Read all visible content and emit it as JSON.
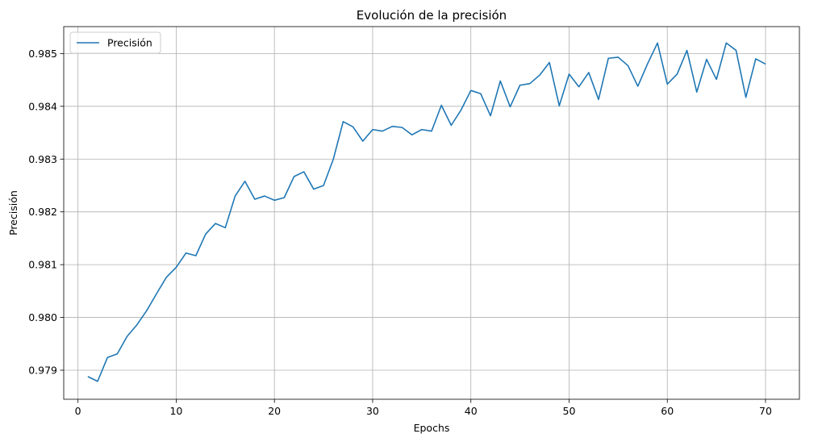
{
  "chart_data": {
    "type": "line",
    "title": "Evolución de la precisión",
    "xlabel": "Epochs",
    "ylabel": "Precisión",
    "xlim": [
      -1.45,
      73.45
    ],
    "ylim": [
      0.97845,
      0.98551
    ],
    "xticks": [
      0,
      10,
      20,
      30,
      40,
      50,
      60,
      70
    ],
    "yticks": [
      0.979,
      0.98,
      0.981,
      0.982,
      0.983,
      0.984,
      0.985
    ],
    "grid": true,
    "legend_position": "top-left",
    "series": [
      {
        "name": "Precisión",
        "color": "#1f77b4",
        "x": [
          1,
          2,
          3,
          4,
          5,
          6,
          7,
          8,
          9,
          10,
          11,
          12,
          13,
          14,
          15,
          16,
          17,
          18,
          19,
          20,
          21,
          22,
          23,
          24,
          25,
          26,
          27,
          28,
          29,
          30,
          31,
          32,
          33,
          34,
          35,
          36,
          37,
          38,
          39,
          40,
          41,
          42,
          43,
          44,
          45,
          46,
          47,
          48,
          49,
          50,
          51,
          52,
          53,
          54,
          55,
          56,
          57,
          58,
          59,
          60,
          61,
          62,
          63,
          64,
          65,
          66,
          67,
          68,
          69,
          70
        ],
        "values": [
          0.97888,
          0.97879,
          0.97924,
          0.97931,
          0.97964,
          0.97986,
          0.98013,
          0.98045,
          0.98076,
          0.98095,
          0.98122,
          0.98117,
          0.98158,
          0.98178,
          0.9817,
          0.9823,
          0.98258,
          0.98224,
          0.9823,
          0.98222,
          0.98227,
          0.98267,
          0.98276,
          0.98243,
          0.9825,
          0.983,
          0.98371,
          0.98361,
          0.98334,
          0.98356,
          0.98353,
          0.98362,
          0.9836,
          0.98346,
          0.98356,
          0.98353,
          0.98402,
          0.98364,
          0.98393,
          0.9843,
          0.98424,
          0.98382,
          0.98448,
          0.98399,
          0.9844,
          0.98443,
          0.98459,
          0.98483,
          0.98401,
          0.98461,
          0.98437,
          0.98464,
          0.98413,
          0.98491,
          0.98493,
          0.98477,
          0.98438,
          0.98481,
          0.9852,
          0.98442,
          0.98461,
          0.98506,
          0.98427,
          0.98489,
          0.98451,
          0.9852,
          0.98506,
          0.98417,
          0.9849,
          0.9848
        ]
      }
    ]
  }
}
